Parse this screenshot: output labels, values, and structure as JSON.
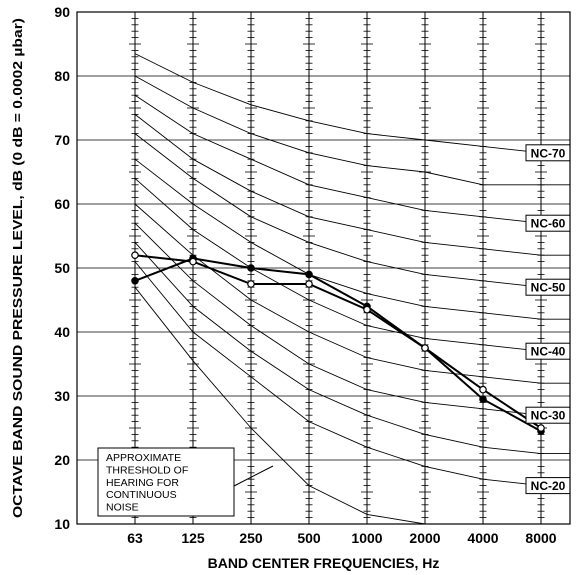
{
  "chart_data": {
    "type": "line",
    "title": "",
    "xlabel": "BAND CENTER FREQUENCIES, Hz",
    "ylabel": "OCTAVE BAND SOUND PRESSURE LEVEL, dB (0 dB = 0.0002 µbar)",
    "categories": [
      "63",
      "125",
      "250",
      "500",
      "1000",
      "2000",
      "4000",
      "8000"
    ],
    "ylim": [
      10,
      90
    ],
    "yticks": [
      "10",
      "20",
      "30",
      "40",
      "50",
      "60",
      "70",
      "80",
      "90"
    ],
    "grid": true,
    "nc_curves": [
      {
        "label": "NC-70",
        "values": [
          83.5,
          79,
          75.5,
          73,
          71,
          70,
          69,
          68
        ]
      },
      {
        "label": "",
        "values": [
          80,
          75,
          71,
          68,
          66,
          65,
          63,
          63
        ]
      },
      {
        "label": "NC-60",
        "values": [
          77,
          71,
          67,
          63,
          61,
          59,
          58,
          57
        ]
      },
      {
        "label": "",
        "values": [
          74,
          67,
          62,
          58,
          56,
          54,
          53,
          52
        ]
      },
      {
        "label": "NC-50",
        "values": [
          71,
          64,
          58,
          54,
          51,
          49,
          48,
          47
        ]
      },
      {
        "label": "",
        "values": [
          67,
          60,
          54,
          49,
          46,
          44,
          43,
          42
        ]
      },
      {
        "label": "NC-40",
        "values": [
          64,
          56,
          50,
          45,
          41,
          39,
          38,
          37
        ]
      },
      {
        "label": "",
        "values": [
          60,
          52,
          45,
          40,
          36,
          34,
          33,
          32
        ]
      },
      {
        "label": "NC-30",
        "values": [
          57,
          48,
          41,
          35,
          31,
          29,
          28,
          27
        ]
      },
      {
        "label": "",
        "values": [
          54,
          44,
          37,
          31,
          27,
          24,
          22,
          21
        ]
      },
      {
        "label": "NC-20",
        "values": [
          51,
          40,
          33,
          26,
          22,
          19,
          17,
          16
        ]
      }
    ],
    "threshold_curve": {
      "values": [
        47,
        35.5,
        25,
        16,
        11.5,
        9.5,
        9,
        9
      ]
    },
    "series": [
      {
        "name": "",
        "marker": "filled",
        "values": [
          48,
          51.5,
          50,
          49,
          44,
          37.5,
          29.5,
          24.5
        ]
      },
      {
        "name": "",
        "marker": "open",
        "values": [
          52,
          51,
          47.5,
          47.5,
          43.5,
          37.5,
          31,
          25
        ]
      }
    ],
    "annotation": [
      "APPROXIMATE",
      "THRESHOLD OF",
      "HEARING FOR",
      "CONTINUOUS",
      "NOISE"
    ]
  }
}
